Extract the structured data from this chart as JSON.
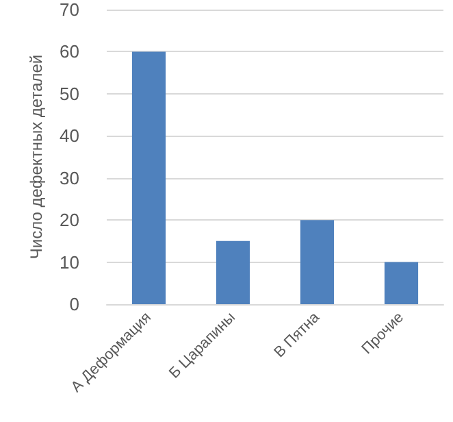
{
  "chart_data": {
    "type": "bar",
    "ylabel": "Число дефектных деталей",
    "categories": [
      "А Деформация",
      "Б Царапины",
      "В Пятна",
      "Прочие"
    ],
    "values": [
      60,
      15,
      20,
      10
    ],
    "color": "#4f81bd",
    "ylim": [
      0,
      70
    ],
    "yticks": [
      0,
      10,
      20,
      30,
      40,
      50,
      60,
      70
    ],
    "grid": "y"
  }
}
